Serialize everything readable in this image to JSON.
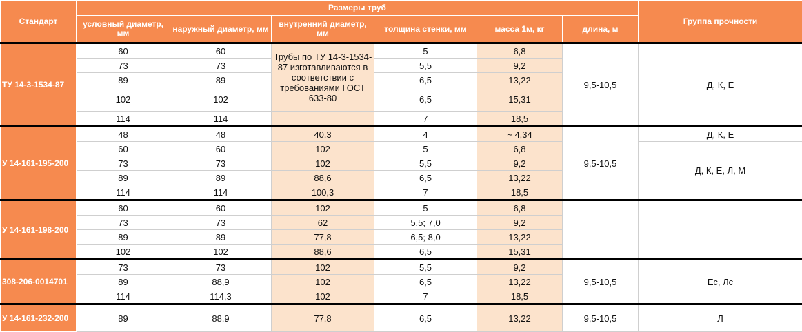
{
  "header": {
    "standard": "Стандарт",
    "pipe_sizes": "Размеры труб",
    "group": "Группа прочности",
    "cols": {
      "nominal_diameter": "условный диаметр, мм",
      "outer_diameter": "наружный диаметр, мм",
      "inner_diameter": "внутренний диаметр, мм",
      "wall_thickness": "толщина стенки, мм",
      "mass": "масса 1м, кг",
      "length": "длина, м"
    }
  },
  "groups": [
    {
      "standard": "ТУ 14-3-1534-87",
      "length": "9,5-10,5",
      "note": "Трубы по ТУ 14-3-1534-87 изготавливаются в соответствии с требованиями ГОСТ 633-80",
      "strength": "Д, К, Е",
      "rows": [
        {
          "nominal": "60",
          "outer": "60",
          "inner": "",
          "wall": "5",
          "mass": "6,8"
        },
        {
          "nominal": "73",
          "outer": "73",
          "inner": "",
          "wall": "5,5",
          "mass": "9,2"
        },
        {
          "nominal": "89",
          "outer": "89",
          "inner": "",
          "wall": "6,5",
          "mass": "13,22"
        },
        {
          "nominal": "102",
          "outer": "102",
          "inner": "",
          "wall": "6,5",
          "mass": "15,31"
        },
        {
          "nominal": "114",
          "outer": "114",
          "inner": "",
          "wall": "7",
          "mass": "18,5"
        }
      ]
    },
    {
      "standard": "У 14-161-195-200",
      "length": "9,5-10,5",
      "strength_first": "Д, К, Е",
      "strength_rest": "Д, К, Е, Л, М",
      "rows": [
        {
          "nominal": "48",
          "outer": "48",
          "inner": "40,3",
          "wall": "4",
          "mass": "~ 4,34"
        },
        {
          "nominal": "60",
          "outer": "60",
          "inner": "102",
          "wall": "5",
          "mass": "6,8"
        },
        {
          "nominal": "73",
          "outer": "73",
          "inner": "102",
          "wall": "5,5",
          "mass": "9,2"
        },
        {
          "nominal": "89",
          "outer": "89",
          "inner": "88,6",
          "wall": "6,5",
          "mass": "13,22"
        },
        {
          "nominal": "114",
          "outer": "114",
          "inner": "100,3",
          "wall": "7",
          "mass": "18,5"
        }
      ]
    },
    {
      "standard": "У 14-161-198-200",
      "length": "",
      "strength": "",
      "rows": [
        {
          "nominal": "60",
          "outer": "60",
          "inner": "102",
          "wall": "5",
          "mass": "6,8"
        },
        {
          "nominal": "73",
          "outer": "73",
          "inner": "62",
          "wall": "5,5; 7,0",
          "mass": "9,2"
        },
        {
          "nominal": "89",
          "outer": "89",
          "inner": "77,8",
          "wall": "6,5; 8,0",
          "mass": "13,22"
        },
        {
          "nominal": "102",
          "outer": "102",
          "inner": "88,6",
          "wall": "6,5",
          "mass": "15,31"
        }
      ]
    },
    {
      "standard": "308-206-0014701",
      "length": "9,5-10,5",
      "strength": "Ес, Лс",
      "rows": [
        {
          "nominal": "73",
          "outer": "73",
          "inner": "102",
          "wall": "5,5",
          "mass": "9,2"
        },
        {
          "nominal": "89",
          "outer": "88,9",
          "inner": "102",
          "wall": "6,5",
          "mass": "13,22"
        },
        {
          "nominal": "114",
          "outer": "114,3",
          "inner": "102",
          "wall": "7",
          "mass": "18,5"
        }
      ]
    },
    {
      "standard": "У 14-161-232-200",
      "length": "9,5-10,5",
      "strength": "Л",
      "rows": [
        {
          "nominal": "89",
          "outer": "88,9",
          "inner": "77,8",
          "wall": "6,5",
          "mass": "13,22"
        }
      ]
    }
  ]
}
